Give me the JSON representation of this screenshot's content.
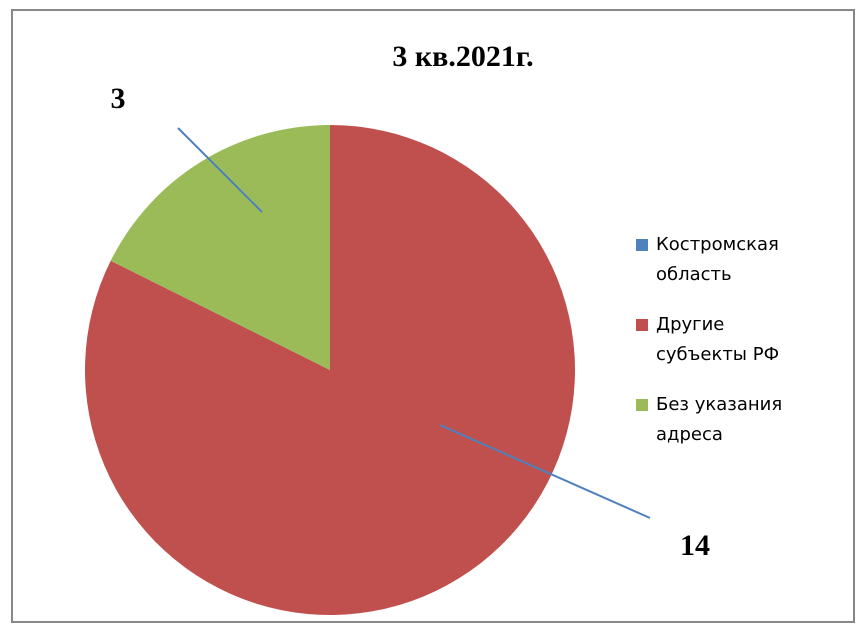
{
  "chart_data": {
    "type": "pie",
    "title": "3 кв.2021г.",
    "categories": [
      "Костромская область",
      "Другие субъекты РФ",
      "Без указания адреса"
    ],
    "values": [
      0,
      14,
      3
    ],
    "colors": [
      "#4f81bd",
      "#c0504d",
      "#9bbb59"
    ],
    "legend": "right"
  }
}
